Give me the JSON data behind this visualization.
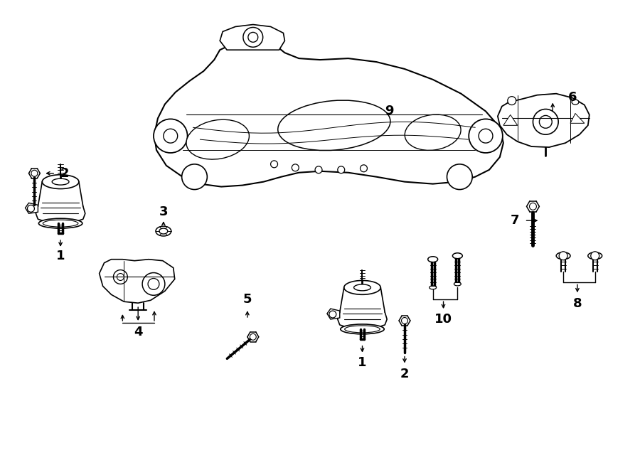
{
  "bg_color": "#ffffff",
  "line_color": "#000000",
  "figsize": [
    9.0,
    6.61
  ],
  "dpi": 100,
  "lw": 1.1
}
